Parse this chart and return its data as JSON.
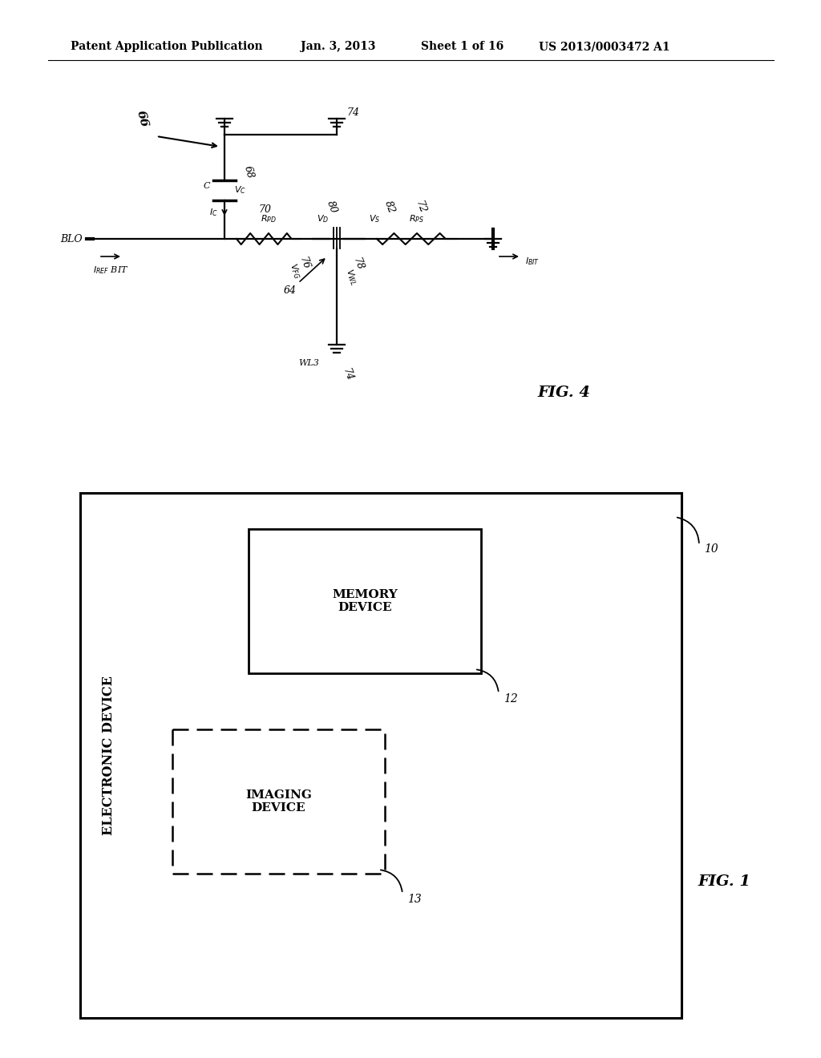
{
  "bg_color": "#ffffff",
  "header_text1": "Patent Application Publication",
  "header_text2": "Jan. 3, 2013",
  "header_text3": "Sheet 1 of 16",
  "header_text4": "US 2013/0003472 A1",
  "fig4_label": "FIG. 4",
  "fig1_label": "FIG. 1"
}
